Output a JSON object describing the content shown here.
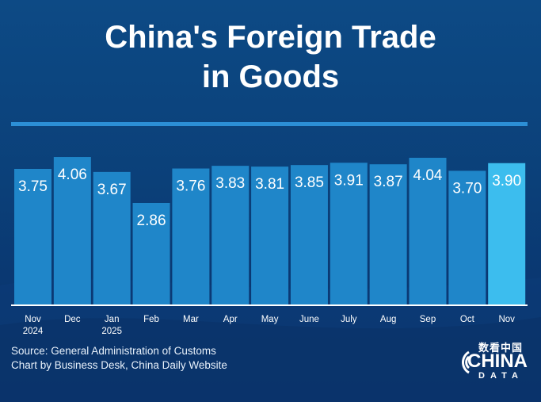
{
  "title": {
    "line1": "China's Foreign Trade",
    "line2": "in Goods"
  },
  "footer": {
    "source": "Source: General Administration of Customs",
    "credit": "Chart by Business Desk, China Daily Website"
  },
  "logo": {
    "chinese": "数看中国",
    "china": "CHINA",
    "data": "DATA"
  },
  "colors": {
    "bar": "#1f86c9",
    "bar_highlight": "#3cbdee",
    "background": "#0b4079",
    "rule": "#2c8fd6"
  },
  "chart_data": {
    "type": "bar",
    "title": "China's Foreign Trade in Goods",
    "categories": [
      [
        "Nov",
        "2024"
      ],
      [
        "Dec"
      ],
      [
        "Jan",
        "2025"
      ],
      [
        "Feb"
      ],
      [
        "Mar"
      ],
      [
        "Apr"
      ],
      [
        "May"
      ],
      [
        "June"
      ],
      [
        "July"
      ],
      [
        "Aug"
      ],
      [
        "Sep"
      ],
      [
        "Oct"
      ],
      [
        "Nov"
      ]
    ],
    "values": [
      3.75,
      4.06,
      3.67,
      2.86,
      3.76,
      3.83,
      3.81,
      3.85,
      3.91,
      3.87,
      4.04,
      3.7,
      3.9
    ],
    "value_labels": [
      "3.75",
      "4.06",
      "3.67",
      "2.86",
      "3.76",
      "3.83",
      "3.81",
      "3.85",
      "3.91",
      "3.87",
      "4.04",
      "3.70",
      "3.90"
    ],
    "highlight_index": 12,
    "grid": false,
    "legend": "none"
  }
}
